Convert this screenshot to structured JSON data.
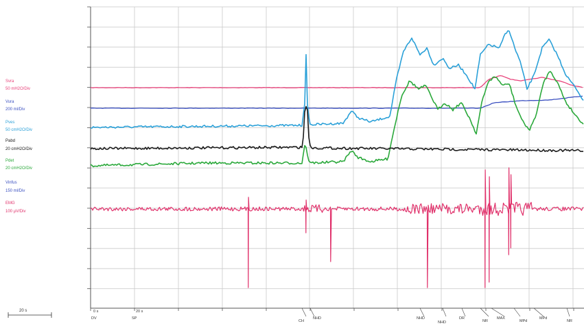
{
  "chart_data": {
    "type": "line",
    "grid": true,
    "channels": [
      {
        "name": "Svra",
        "scale": "50 mH2O/Div",
        "color": "#e8427a"
      },
      {
        "name": "Vura",
        "scale": "200 ml/Div",
        "color": "#3a4fc0"
      },
      {
        "name": "Pves",
        "scale": "50 cmH2O/Div",
        "color": "#2aa0d8"
      },
      {
        "name": "Pabd",
        "scale": "20 cmH2O/Div",
        "color": "#1a1a1a"
      },
      {
        "name": "Pdet",
        "scale": "20 cmH2O/Div",
        "color": "#2aa83a"
      },
      {
        "name": "Vinfus",
        "scale": "150 ml/Div",
        "color": "#3a4fc0"
      },
      {
        "name": "EMG",
        "scale": "100 µV/Div",
        "color": "#e0306a"
      }
    ],
    "time_scale": "20 s",
    "time_labels": [
      "0 s",
      "20 s"
    ],
    "event_markers": [
      "DV",
      "SP",
      "CH",
      "NHD",
      "NHD",
      "NHD",
      "DR",
      "NR",
      "MAX",
      "MPd",
      "MPd",
      "NR"
    ]
  }
}
